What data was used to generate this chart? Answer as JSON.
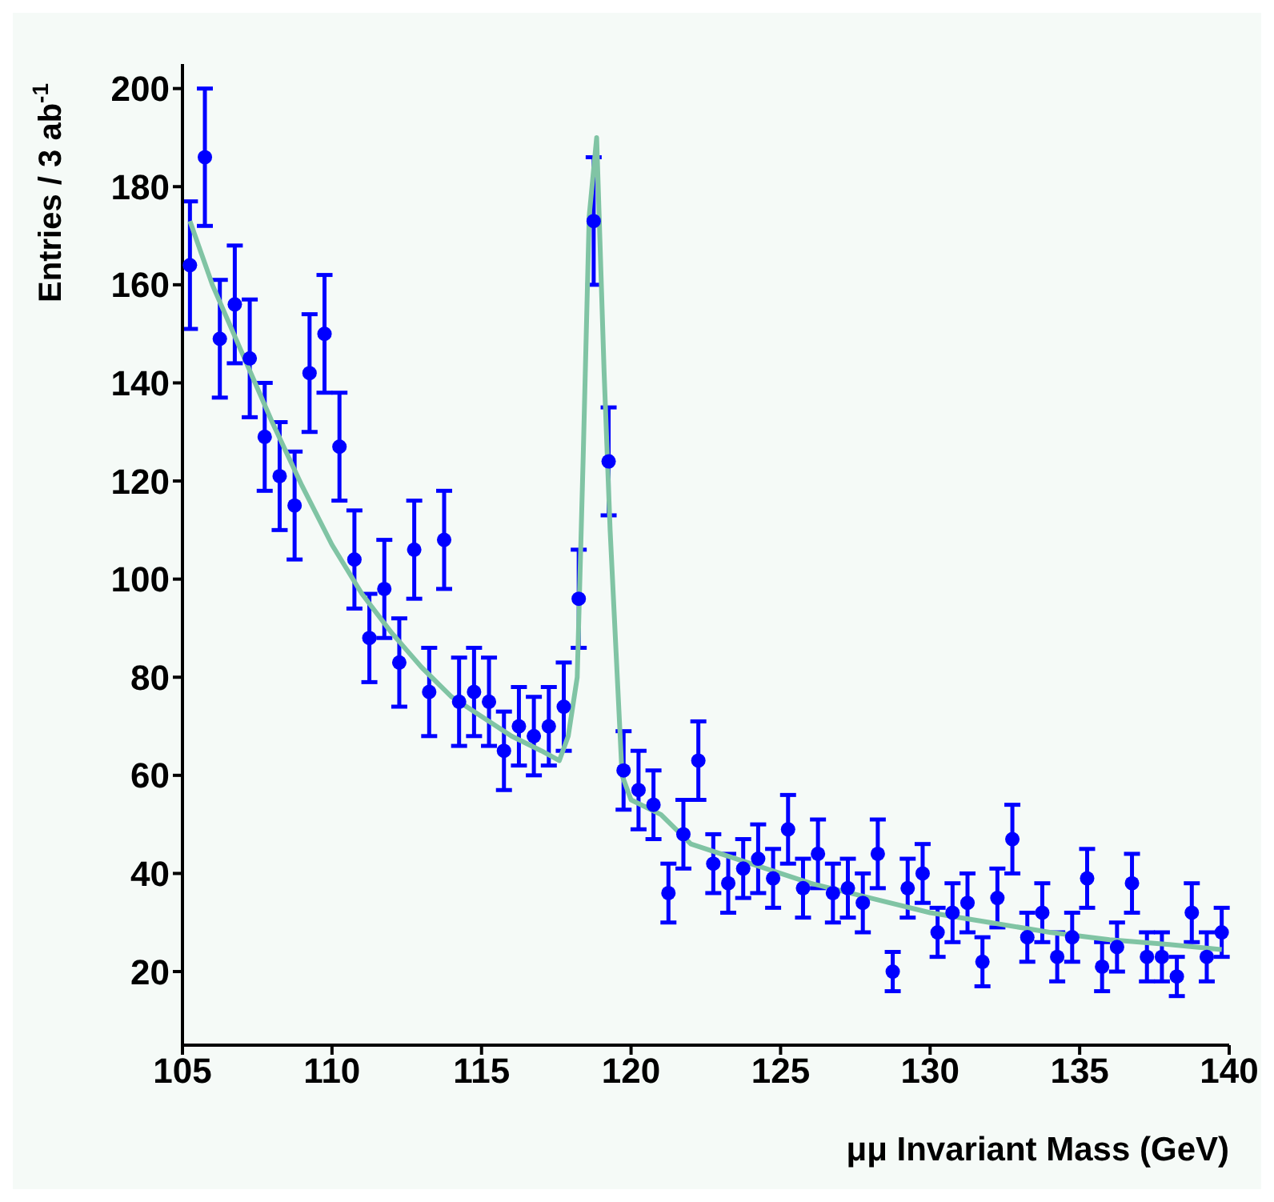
{
  "chart_data": {
    "type": "scatter",
    "xlabel": "μμ Invariant Mass (GeV)",
    "ylabel": "Entries / 3 ab$^{-1}$",
    "xlim": [
      105,
      140
    ],
    "ylim": [
      5,
      205
    ],
    "xticks": [
      105,
      110,
      115,
      120,
      125,
      130,
      135,
      140
    ],
    "yticks": [
      20,
      40,
      60,
      80,
      100,
      120,
      140,
      160,
      180,
      200
    ],
    "grid": false,
    "legend": false,
    "series": [
      {
        "color": "#0000ff",
        "marker": "circle",
        "x": [
          105.25,
          105.75,
          106.25,
          106.75,
          107.25,
          107.75,
          108.25,
          108.75,
          109.25,
          109.75,
          110.25,
          110.75,
          111.25,
          111.75,
          112.25,
          112.75,
          113.25,
          113.75,
          114.25,
          114.75,
          115.25,
          115.75,
          116.25,
          116.75,
          117.25,
          117.75,
          118.25,
          118.75,
          119.25,
          119.75,
          120.25,
          120.75,
          121.25,
          121.75,
          122.25,
          122.75,
          123.25,
          123.75,
          124.25,
          124.75,
          125.25,
          125.75,
          126.25,
          126.75,
          127.25,
          127.75,
          128.25,
          128.75,
          129.25,
          129.75,
          130.25,
          130.75,
          131.25,
          131.75,
          132.25,
          132.75,
          133.25,
          133.75,
          134.25,
          134.75,
          135.25,
          135.75,
          136.25,
          136.75,
          137.25,
          137.75,
          138.25,
          138.75,
          139.25,
          139.75
        ],
        "values": [
          164,
          186,
          149,
          156,
          145,
          129,
          121,
          115,
          142,
          150,
          127,
          104,
          88,
          98,
          83,
          106,
          77,
          108,
          75,
          77,
          75,
          65,
          70,
          68,
          70,
          74,
          96,
          173,
          124,
          61,
          57,
          54,
          36,
          48,
          63,
          42,
          38,
          41,
          43,
          39,
          49,
          37,
          44,
          36,
          37,
          34,
          44,
          20,
          37,
          40,
          28,
          32,
          34,
          22,
          35,
          47,
          27,
          32,
          23,
          27,
          39,
          21,
          25,
          38,
          23,
          23,
          19,
          32,
          23,
          28
        ],
        "errors": [
          13,
          14,
          12,
          12,
          12,
          11,
          11,
          11,
          12,
          12,
          11,
          10,
          9,
          10,
          9,
          10,
          9,
          10,
          9,
          9,
          9,
          8,
          8,
          8,
          8,
          9,
          10,
          13,
          11,
          8,
          8,
          7,
          6,
          7,
          8,
          6,
          6,
          6,
          7,
          6,
          7,
          6,
          7,
          6,
          6,
          6,
          7,
          4,
          6,
          6,
          5,
          6,
          6,
          5,
          6,
          7,
          5,
          6,
          5,
          5,
          6,
          5,
          5,
          6,
          5,
          5,
          4,
          6,
          5,
          5
        ]
      },
      {
        "type": "line",
        "color": "#80c4a4",
        "x": [
          105.25,
          106,
          107,
          108,
          109,
          110,
          111,
          112,
          113,
          114,
          115,
          116,
          117,
          117.6,
          117.9,
          118.2,
          118.4,
          118.6,
          118.85,
          119.1,
          119.3,
          119.5,
          119.7,
          120,
          121,
          122,
          124,
          126,
          128,
          130,
          132,
          134,
          136,
          138,
          139.75
        ],
        "values": [
          173,
          160,
          146,
          132,
          119,
          107,
          97,
          89,
          82,
          76,
          72,
          68,
          65,
          63,
          68,
          80,
          125,
          174,
          190,
          142,
          110,
          85,
          60,
          55,
          52,
          46,
          42,
          38,
          35,
          32,
          30,
          28,
          26.5,
          25.5,
          24.5
        ]
      }
    ]
  }
}
